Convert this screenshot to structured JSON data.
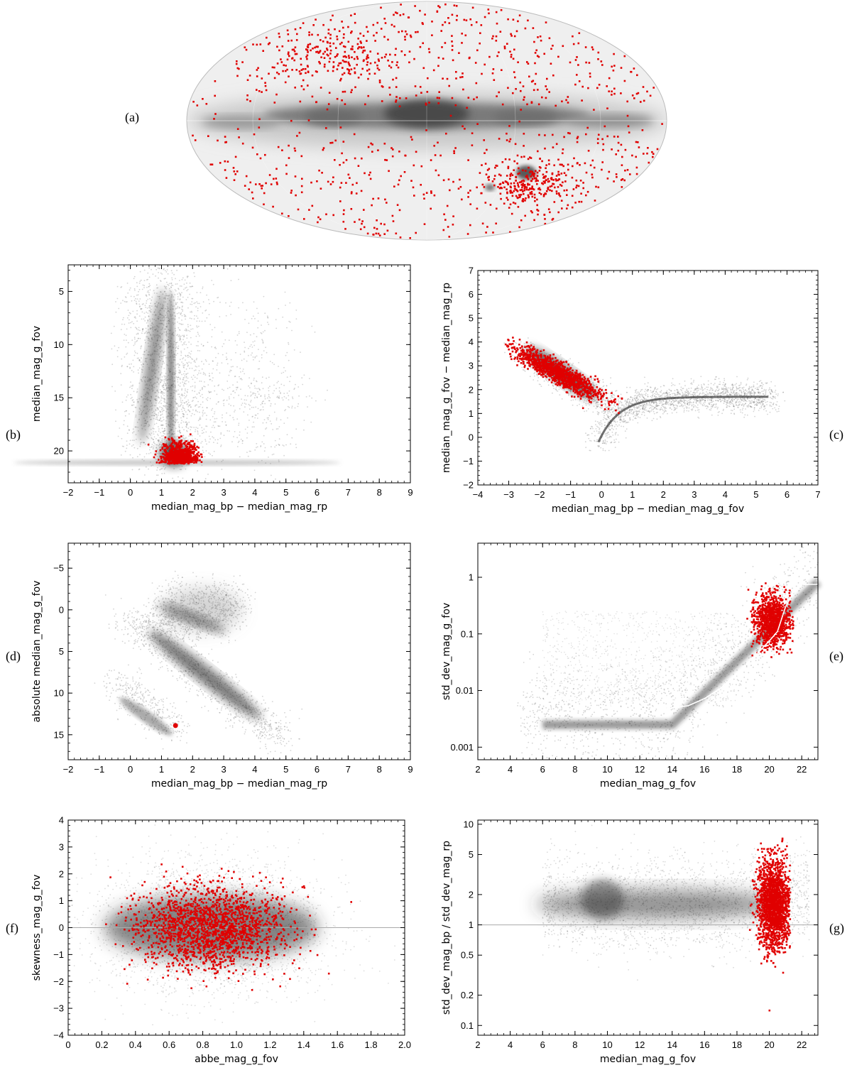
{
  "panel_labels": {
    "a": "(a)",
    "b": "(b)",
    "c": "(c)",
    "d": "(d)",
    "e": "(e)",
    "f": "(f)",
    "g": "(g)"
  },
  "colors": {
    "highlight": "#e00000",
    "density": "#555555",
    "background": "#ffffff",
    "median_curve": "#ffffff"
  },
  "chart_data": [
    {
      "id": "a",
      "type": "scatter",
      "projection": "mollweide",
      "title": "",
      "xlabel": "",
      "ylabel": "",
      "series": [
        {
          "role": "background",
          "rendering": "density",
          "description_key": "sky-density"
        },
        {
          "role": "highlight",
          "color": "#e00000",
          "rendering": "points"
        }
      ],
      "features": {
        "galactic_plane": true,
        "lmc": true,
        "smc": true
      }
    },
    {
      "id": "b",
      "type": "scatter",
      "xlabel": "median_mag_bp − median_mag_rp",
      "ylabel": "median_mag_g_fov",
      "xlim": [
        -2,
        9
      ],
      "ylim": [
        23,
        2.5
      ],
      "y_inverted": true,
      "xticks": [
        -2,
        -1,
        0,
        1,
        2,
        3,
        4,
        5,
        6,
        7,
        8,
        9
      ],
      "yticks": [
        5,
        10,
        15,
        20
      ],
      "highlight_region": {
        "x": [
          0.5,
          2.3
        ],
        "y": [
          18.4,
          21.2
        ],
        "center": [
          1.6,
          20.6
        ]
      }
    },
    {
      "id": "c",
      "type": "scatter",
      "xlabel": "median_mag_bp − median_mag_g_fov",
      "ylabel": "median_mag_g_fov − median_mag_rp",
      "xlim": [
        -4,
        7
      ],
      "ylim": [
        -2,
        7
      ],
      "xticks": [
        -4,
        -3,
        -2,
        -1,
        0,
        1,
        2,
        3,
        4,
        5,
        6,
        7
      ],
      "yticks": [
        -2,
        -1,
        0,
        1,
        2,
        3,
        4,
        5,
        6,
        7
      ],
      "highlight_region": {
        "x": [
          -3.1,
          0.7
        ],
        "y": [
          1.0,
          4.4
        ],
        "center": [
          -1.4,
          2.7
        ]
      }
    },
    {
      "id": "d",
      "type": "scatter",
      "xlabel": "median_mag_bp − median_mag_rp",
      "ylabel": "absolute median_mag_g_fov",
      "xlim": [
        -2,
        9
      ],
      "ylim": [
        18,
        -8
      ],
      "y_inverted": true,
      "xticks": [
        -2,
        -1,
        0,
        1,
        2,
        3,
        4,
        5,
        6,
        7,
        8,
        9
      ],
      "yticks": [
        -5,
        0,
        5,
        10,
        15
      ],
      "highlight_points": [
        [
          1.45,
          13.9
        ]
      ]
    },
    {
      "id": "e",
      "type": "scatter",
      "xlabel": "median_mag_g_fov",
      "ylabel": "std_dev_mag_g_fov",
      "xlim": [
        2,
        23
      ],
      "ylim": [
        0.0006,
        4
      ],
      "yscale": "log",
      "xticks": [
        2,
        4,
        6,
        8,
        10,
        12,
        14,
        16,
        18,
        20,
        22
      ],
      "yticks": [
        0.001,
        0.01,
        0.1,
        1
      ],
      "ytick_labels": [
        "0.001",
        "0.01",
        "0.1",
        "1"
      ],
      "median_curve": {
        "x": [
          6,
          7,
          8,
          9,
          10,
          10.5,
          11,
          11.5,
          12,
          13,
          14,
          15,
          16,
          17,
          18,
          19,
          20,
          20.5,
          21,
          21.5,
          22,
          23
        ],
        "y": [
          0.0078,
          0.0074,
          0.0068,
          0.0063,
          0.0058,
          0.0052,
          0.0065,
          0.0058,
          0.0054,
          0.005,
          0.0049,
          0.0054,
          0.0072,
          0.011,
          0.02,
          0.038,
          0.075,
          0.11,
          0.3,
          0.55,
          0.75,
          0.75
        ]
      },
      "highlight_region": {
        "x": [
          18.5,
          21.5
        ],
        "y": [
          0.035,
          1.6
        ],
        "center": [
          20.2,
          0.17
        ]
      }
    },
    {
      "id": "f",
      "type": "scatter",
      "xlabel": "abbe_mag_g_fov",
      "ylabel": "skewness_mag_g_fov",
      "xlim": [
        0,
        2
      ],
      "ylim": [
        -4,
        4
      ],
      "xticks": [
        0,
        0.2,
        0.4,
        0.6,
        0.8,
        1.0,
        1.2,
        1.4,
        1.6,
        1.8,
        2.0
      ],
      "xtick_labels": [
        "0",
        "0.2",
        "0.4",
        "0.6",
        "0.8",
        "1.0",
        "1.2",
        "1.4",
        "1.6",
        "1.8",
        "2.0"
      ],
      "yticks": [
        -4,
        -3,
        -2,
        -1,
        0,
        1,
        2,
        3,
        4
      ],
      "reference_line": {
        "y": 0
      },
      "highlight_region": {
        "x": [
          0.2,
          1.75
        ],
        "y": [
          -3.9,
          3.3
        ],
        "center": [
          0.85,
          0.0
        ]
      }
    },
    {
      "id": "g",
      "type": "scatter",
      "xlabel": "median_mag_g_fov",
      "ylabel": "std_dev_mag_bp / std_dev_mag_rp",
      "xlim": [
        2,
        23
      ],
      "ylim": [
        0.08,
        11
      ],
      "yscale": "log",
      "xticks": [
        2,
        4,
        6,
        8,
        10,
        12,
        14,
        16,
        18,
        20,
        22
      ],
      "yticks": [
        0.1,
        0.2,
        0.5,
        1,
        2,
        5,
        10
      ],
      "ytick_labels": [
        "0.1",
        "0.2",
        "0.5",
        "1",
        "2",
        "5",
        "10"
      ],
      "reference_line": {
        "y": 1
      },
      "highlight_region": {
        "x": [
          18.7,
          21.3
        ],
        "y": [
          0.11,
          10
        ],
        "center": [
          20.3,
          1.6
        ]
      }
    }
  ]
}
